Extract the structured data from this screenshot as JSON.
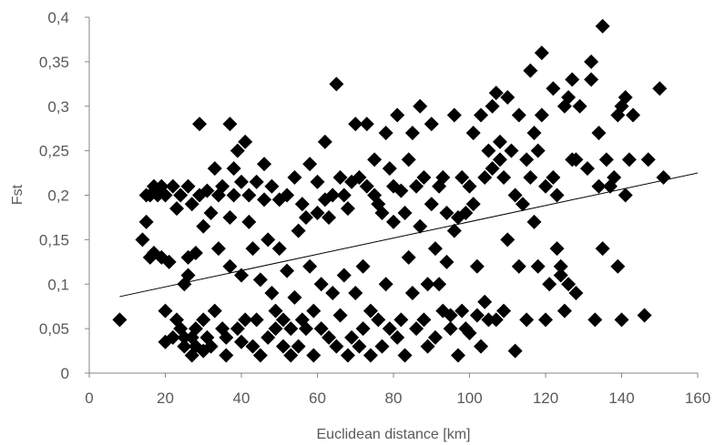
{
  "chart_data": {
    "type": "scatter",
    "title": "",
    "xlabel": "Euclidean distance [km]",
    "ylabel": "Fst",
    "xlim": [
      0,
      160
    ],
    "ylim": [
      0,
      0.4
    ],
    "x_ticks": [
      0,
      20,
      40,
      60,
      80,
      100,
      120,
      140,
      160
    ],
    "y_ticks": [
      0,
      0.05,
      0.1,
      0.15,
      0.2,
      0.25,
      0.3,
      0.35,
      0.4
    ],
    "x_tick_labels": [
      "0",
      "20",
      "40",
      "60",
      "80",
      "100",
      "120",
      "140",
      "160"
    ],
    "y_tick_labels": [
      "0",
      "0,05",
      "0,1",
      "0,15",
      "0,2",
      "0,25",
      "0,3",
      "0,35",
      "0,4"
    ],
    "grid": false,
    "legend": "none",
    "marker": "diamond",
    "marker_color": "#000000",
    "trendline": {
      "type": "linear",
      "x": [
        8,
        160
      ],
      "y": [
        0.086,
        0.225
      ]
    },
    "series": [
      {
        "points": [
          [
            8,
            0.06
          ],
          [
            14,
            0.15
          ],
          [
            15,
            0.2
          ],
          [
            15,
            0.17
          ],
          [
            16,
            0.13
          ],
          [
            16,
            0.2
          ],
          [
            17,
            0.135
          ],
          [
            17,
            0.21
          ],
          [
            18,
            0.2
          ],
          [
            19,
            0.13
          ],
          [
            19,
            0.21
          ],
          [
            20,
            0.07
          ],
          [
            20,
            0.035
          ],
          [
            20,
            0.2
          ],
          [
            21,
            0.125
          ],
          [
            22,
            0.21
          ],
          [
            22,
            0.04
          ],
          [
            23,
            0.06
          ],
          [
            23,
            0.185
          ],
          [
            24,
            0.05
          ],
          [
            24,
            0.2
          ],
          [
            25,
            0.1
          ],
          [
            25,
            0.03
          ],
          [
            25,
            0.04
          ],
          [
            26,
            0.11
          ],
          [
            26,
            0.13
          ],
          [
            26,
            0.21
          ],
          [
            27,
            0.02
          ],
          [
            27,
            0.04
          ],
          [
            27,
            0.19
          ],
          [
            28,
            0.05
          ],
          [
            28,
            0.135
          ],
          [
            28,
            0.03
          ],
          [
            29,
            0.28
          ],
          [
            29,
            0.2
          ],
          [
            30,
            0.025
          ],
          [
            30,
            0.06
          ],
          [
            30,
            0.165
          ],
          [
            31,
            0.04
          ],
          [
            31,
            0.205
          ],
          [
            32,
            0.03
          ],
          [
            32,
            0.18
          ],
          [
            33,
            0.07
          ],
          [
            33,
            0.23
          ],
          [
            34,
            0.14
          ],
          [
            34,
            0.2
          ],
          [
            35,
            0.05
          ],
          [
            35,
            0.21
          ],
          [
            36,
            0.04
          ],
          [
            36,
            0.02
          ],
          [
            37,
            0.12
          ],
          [
            37,
            0.175
          ],
          [
            37,
            0.28
          ],
          [
            38,
            0.23
          ],
          [
            38,
            0.2
          ],
          [
            39,
            0.05
          ],
          [
            39,
            0.25
          ],
          [
            40,
            0.11
          ],
          [
            40,
            0.215
          ],
          [
            40,
            0.035
          ],
          [
            41,
            0.26
          ],
          [
            41,
            0.06
          ],
          [
            42,
            0.2
          ],
          [
            42,
            0.17
          ],
          [
            43,
            0.03
          ],
          [
            43,
            0.14
          ],
          [
            44,
            0.06
          ],
          [
            44,
            0.215
          ],
          [
            45,
            0.105
          ],
          [
            45,
            0.02
          ],
          [
            46,
            0.235
          ],
          [
            46,
            0.195
          ],
          [
            47,
            0.15
          ],
          [
            47,
            0.04
          ],
          [
            48,
            0.09
          ],
          [
            48,
            0.21
          ],
          [
            49,
            0.07
          ],
          [
            49,
            0.05
          ],
          [
            50,
            0.14
          ],
          [
            50,
            0.195
          ],
          [
            51,
            0.03
          ],
          [
            51,
            0.06
          ],
          [
            52,
            0.115
          ],
          [
            52,
            0.2
          ],
          [
            53,
            0.05
          ],
          [
            53,
            0.02
          ],
          [
            54,
            0.085
          ],
          [
            54,
            0.22
          ],
          [
            55,
            0.16
          ],
          [
            55,
            0.03
          ],
          [
            56,
            0.06
          ],
          [
            56,
            0.19
          ],
          [
            57,
            0.175
          ],
          [
            57,
            0.05
          ],
          [
            58,
            0.12
          ],
          [
            58,
            0.235
          ],
          [
            59,
            0.02
          ],
          [
            59,
            0.07
          ],
          [
            60,
            0.18
          ],
          [
            60,
            0.215
          ],
          [
            61,
            0.1
          ],
          [
            61,
            0.05
          ],
          [
            62,
            0.26
          ],
          [
            62,
            0.195
          ],
          [
            63,
            0.04
          ],
          [
            63,
            0.175
          ],
          [
            64,
            0.09
          ],
          [
            64,
            0.2
          ],
          [
            65,
            0.325
          ],
          [
            65,
            0.03
          ],
          [
            66,
            0.22
          ],
          [
            66,
            0.065
          ],
          [
            67,
            0.11
          ],
          [
            67,
            0.2
          ],
          [
            68,
            0.02
          ],
          [
            68,
            0.185
          ],
          [
            69,
            0.04
          ],
          [
            69,
            0.215
          ],
          [
            70,
            0.28
          ],
          [
            70,
            0.09
          ],
          [
            71,
            0.22
          ],
          [
            71,
            0.03
          ],
          [
            72,
            0.12
          ],
          [
            72,
            0.05
          ],
          [
            73,
            0.28
          ],
          [
            73,
            0.21
          ],
          [
            74,
            0.07
          ],
          [
            74,
            0.02
          ],
          [
            75,
            0.2
          ],
          [
            75,
            0.24
          ],
          [
            76,
            0.19
          ],
          [
            76,
            0.06
          ],
          [
            77,
            0.03
          ],
          [
            77,
            0.18
          ],
          [
            78,
            0.27
          ],
          [
            78,
            0.1
          ],
          [
            79,
            0.05
          ],
          [
            79,
            0.23
          ],
          [
            80,
            0.21
          ],
          [
            80,
            0.17
          ],
          [
            81,
            0.29
          ],
          [
            81,
            0.04
          ],
          [
            82,
            0.205
          ],
          [
            82,
            0.06
          ],
          [
            83,
            0.18
          ],
          [
            83,
            0.02
          ],
          [
            84,
            0.13
          ],
          [
            84,
            0.24
          ],
          [
            85,
            0.27
          ],
          [
            85,
            0.09
          ],
          [
            86,
            0.21
          ],
          [
            86,
            0.05
          ],
          [
            87,
            0.3
          ],
          [
            87,
            0.165
          ],
          [
            88,
            0.22
          ],
          [
            88,
            0.06
          ],
          [
            89,
            0.1
          ],
          [
            89,
            0.03
          ],
          [
            90,
            0.28
          ],
          [
            90,
            0.19
          ],
          [
            91,
            0.14
          ],
          [
            91,
            0.04
          ],
          [
            92,
            0.21
          ],
          [
            92,
            0.1
          ],
          [
            93,
            0.07
          ],
          [
            93,
            0.22
          ],
          [
            94,
            0.125
          ],
          [
            94,
            0.18
          ],
          [
            95,
            0.05
          ],
          [
            95,
            0.065
          ],
          [
            96,
            0.29
          ],
          [
            96,
            0.16
          ],
          [
            97,
            0.02
          ],
          [
            97,
            0.175
          ],
          [
            98,
            0.22
          ],
          [
            98,
            0.07
          ],
          [
            99,
            0.05
          ],
          [
            99,
            0.18
          ],
          [
            100,
            0.21
          ],
          [
            100,
            0.045
          ],
          [
            101,
            0.27
          ],
          [
            101,
            0.19
          ],
          [
            102,
            0.065
          ],
          [
            102,
            0.12
          ],
          [
            103,
            0.29
          ],
          [
            103,
            0.03
          ],
          [
            104,
            0.22
          ],
          [
            104,
            0.08
          ],
          [
            105,
            0.25
          ],
          [
            105,
            0.06
          ],
          [
            106,
            0.3
          ],
          [
            106,
            0.23
          ],
          [
            107,
            0.315
          ],
          [
            107,
            0.06
          ],
          [
            108,
            0.26
          ],
          [
            108,
            0.24
          ],
          [
            109,
            0.22
          ],
          [
            109,
            0.07
          ],
          [
            110,
            0.31
          ],
          [
            110,
            0.15
          ],
          [
            111,
            0.25
          ],
          [
            112,
            0.2
          ],
          [
            112,
            0.025
          ],
          [
            113,
            0.12
          ],
          [
            113,
            0.29
          ],
          [
            114,
            0.19
          ],
          [
            115,
            0.06
          ],
          [
            115,
            0.24
          ],
          [
            116,
            0.34
          ],
          [
            116,
            0.22
          ],
          [
            117,
            0.17
          ],
          [
            117,
            0.27
          ],
          [
            118,
            0.12
          ],
          [
            118,
            0.25
          ],
          [
            119,
            0.36
          ],
          [
            119,
            0.29
          ],
          [
            120,
            0.06
          ],
          [
            120,
            0.21
          ],
          [
            121,
            0.1
          ],
          [
            122,
            0.22
          ],
          [
            122,
            0.32
          ],
          [
            123,
            0.14
          ],
          [
            123,
            0.2
          ],
          [
            124,
            0.11
          ],
          [
            124,
            0.12
          ],
          [
            125,
            0.07
          ],
          [
            125,
            0.3
          ],
          [
            126,
            0.31
          ],
          [
            126,
            0.1
          ],
          [
            127,
            0.33
          ],
          [
            127,
            0.24
          ],
          [
            128,
            0.09
          ],
          [
            128,
            0.24
          ],
          [
            129,
            0.3
          ],
          [
            131,
            0.23
          ],
          [
            132,
            0.33
          ],
          [
            132,
            0.35
          ],
          [
            133,
            0.06
          ],
          [
            134,
            0.27
          ],
          [
            134,
            0.21
          ],
          [
            135,
            0.39
          ],
          [
            135,
            0.14
          ],
          [
            136,
            0.24
          ],
          [
            137,
            0.21
          ],
          [
            138,
            0.22
          ],
          [
            139,
            0.29
          ],
          [
            139,
            0.12
          ],
          [
            140,
            0.06
          ],
          [
            140,
            0.3
          ],
          [
            141,
            0.31
          ],
          [
            141,
            0.2
          ],
          [
            142,
            0.24
          ],
          [
            143,
            0.29
          ],
          [
            146,
            0.065
          ],
          [
            147,
            0.24
          ],
          [
            150,
            0.32
          ],
          [
            151,
            0.22
          ]
        ]
      }
    ]
  }
}
